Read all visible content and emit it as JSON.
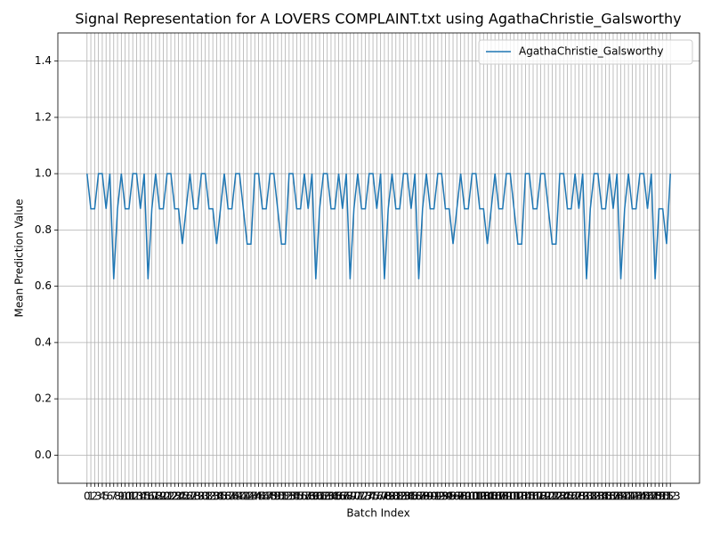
{
  "chart_data": {
    "type": "line",
    "title": "Signal Representation for A LOVERS COMPLAINT.txt using AgathaChristie_Galsworthy",
    "xlabel": "Batch Index",
    "ylabel": "Mean Prediction Value",
    "x": [
      0,
      1,
      2,
      3,
      4,
      5,
      6,
      7,
      8,
      9,
      10,
      11,
      12,
      13,
      14,
      15,
      16,
      17,
      18,
      19,
      20,
      21,
      22,
      23,
      24,
      25,
      26,
      27,
      28,
      29,
      30,
      31,
      32,
      33,
      34,
      35,
      36,
      37,
      38,
      39,
      40,
      41,
      42,
      43,
      44,
      45,
      46,
      47,
      48,
      49,
      50,
      51,
      52,
      53,
      54,
      55,
      56,
      57,
      58,
      59,
      60,
      61,
      62,
      63,
      64,
      65,
      66,
      67,
      68,
      69,
      70,
      71,
      72,
      73,
      74,
      75,
      76,
      77,
      78,
      79,
      80,
      81,
      82,
      83,
      84,
      85,
      86,
      87,
      88,
      89,
      90,
      91,
      92,
      93,
      94,
      95,
      96,
      97,
      98,
      99,
      100,
      101,
      102,
      103,
      104,
      105,
      106,
      107,
      108,
      109,
      110,
      111,
      112,
      113,
      114,
      115,
      116,
      117,
      118,
      119,
      120,
      121,
      122,
      123,
      124,
      125,
      126,
      127,
      128,
      129,
      130,
      131,
      132,
      133,
      134,
      135,
      136,
      137,
      138,
      139,
      140,
      141,
      142,
      143,
      144,
      145,
      146,
      147,
      148,
      149,
      150,
      151,
      152,
      153
    ],
    "series": [
      {
        "name": "AgathaChristie_Galsworthy",
        "color": "#1f77b4",
        "values": [
          1,
          0.875,
          0.875,
          1,
          1,
          0.875,
          1,
          0.625,
          0.875,
          1,
          0.875,
          0.875,
          1,
          1,
          0.875,
          1,
          0.625,
          0.875,
          1,
          0.875,
          0.875,
          1,
          1,
          0.875,
          0.875,
          0.75,
          0.875,
          1,
          0.875,
          0.875,
          1,
          1,
          0.875,
          0.875,
          0.75,
          0.875,
          1,
          0.875,
          0.875,
          1,
          1,
          0.875,
          0.75,
          0.75,
          1,
          1,
          0.875,
          0.875,
          1,
          1,
          0.875,
          0.75,
          0.75,
          1,
          1,
          0.875,
          0.875,
          1,
          0.875,
          1,
          0.625,
          0.875,
          1,
          1,
          0.875,
          0.875,
          1,
          0.875,
          1,
          0.625,
          0.875,
          1,
          0.875,
          0.875,
          1,
          1,
          0.875,
          1,
          0.625,
          0.875,
          1,
          0.875,
          0.875,
          1,
          1,
          0.875,
          1,
          0.625,
          0.875,
          1,
          0.875,
          0.875,
          1,
          1,
          0.875,
          0.875,
          0.75,
          0.875,
          1,
          0.875,
          0.875,
          1,
          1,
          0.875,
          0.875,
          0.75,
          0.875,
          1,
          0.875,
          0.875,
          1,
          1,
          0.875,
          0.75,
          0.75,
          1,
          1,
          0.875,
          0.875,
          1,
          1,
          0.875,
          0.75,
          0.75,
          1,
          1,
          0.875,
          0.875,
          1,
          0.875,
          1,
          0.625,
          0.875,
          1,
          1,
          0.875,
          0.875,
          1,
          0.875,
          1,
          0.625,
          0.875,
          1,
          0.875,
          0.875,
          1,
          1,
          0.875,
          1,
          0.625,
          0.875,
          0.875,
          0.75,
          1
        ]
      }
    ],
    "xlim": [
      -7.65,
      160.65
    ],
    "xticks": [
      0,
      1,
      2,
      3,
      4,
      5,
      6,
      7,
      8,
      9,
      10,
      11,
      12,
      13,
      14,
      15,
      16,
      17,
      18,
      19,
      20,
      21,
      22,
      23,
      24,
      25,
      26,
      27,
      28,
      29,
      30,
      31,
      32,
      33,
      34,
      35,
      36,
      37,
      38,
      39,
      40,
      41,
      42,
      43,
      44,
      45,
      46,
      47,
      48,
      49,
      50,
      51,
      52,
      53,
      54,
      55,
      56,
      57,
      58,
      59,
      60,
      61,
      62,
      63,
      64,
      65,
      66,
      67,
      68,
      69,
      70,
      71,
      72,
      73,
      74,
      75,
      76,
      77,
      78,
      79,
      80,
      81,
      82,
      83,
      84,
      85,
      86,
      87,
      88,
      89,
      90,
      91,
      92,
      93,
      94,
      95,
      96,
      97,
      98,
      99,
      100,
      101,
      102,
      103,
      104,
      105,
      106,
      107,
      108,
      109,
      110,
      111,
      112,
      113,
      114,
      115,
      116,
      117,
      118,
      119,
      120,
      121,
      122,
      123,
      124,
      125,
      126,
      127,
      128,
      129,
      130,
      131,
      132,
      133,
      134,
      135,
      136,
      137,
      138,
      139,
      140,
      141,
      142,
      143,
      144,
      145,
      146,
      147,
      148,
      149,
      150,
      151,
      152,
      153
    ],
    "ylim": [
      -0.1,
      1.5
    ],
    "yticks": [
      {
        "value": 0,
        "label": "0.0"
      },
      0.2,
      0.4,
      0.6,
      0.8,
      {
        "value": 1,
        "label": "1.0"
      },
      1.2,
      1.4
    ],
    "grid": true,
    "legend": "upper right"
  }
}
